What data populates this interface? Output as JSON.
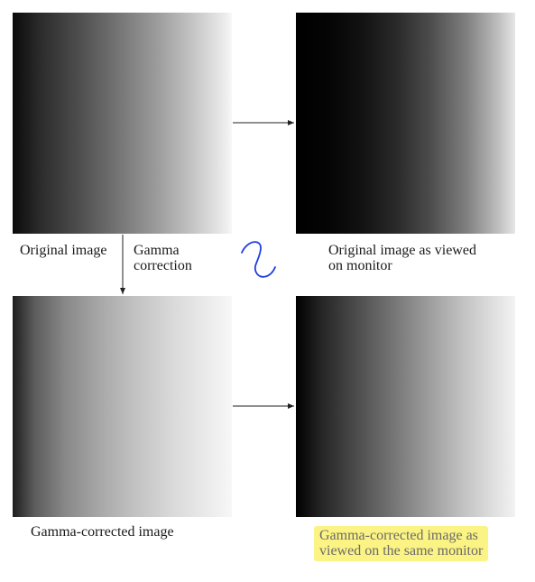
{
  "labels": {
    "original": "Original image",
    "gamma_correction": "Gamma\ncorrection",
    "viewed_on_monitor": "Original image as viewed\non monitor",
    "gamma_corrected": "Gamma-corrected image",
    "gamma_corrected_viewed": "Gamma-corrected image as\nviewed on the same monitor"
  },
  "colors": {
    "highlight": "#fbf383",
    "annotation": "#1f3fe0",
    "arrow": "#222222"
  }
}
